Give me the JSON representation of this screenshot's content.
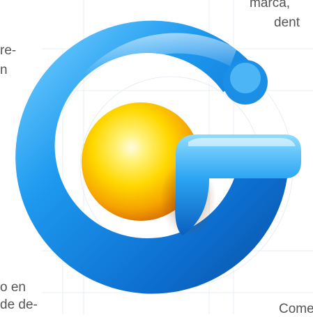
{
  "text_fragments": {
    "top_left_line1": "re-",
    "top_left_line2": "n",
    "top_right_line1": "marca,",
    "top_right_line2": "dent",
    "bottom_left_line1": "o en",
    "bottom_left_line2": "de de-",
    "bottom_right_line1": "Come"
  },
  "logo": {
    "icon": "g-letter-logo-icon",
    "colors": {
      "ring_blue_light": "#5ec8ff",
      "ring_blue": "#1a8fe3",
      "ring_blue_dark": "#0a4f9e",
      "sphere_yellow": "#ffe300",
      "sphere_orange": "#f08a00",
      "sphere_highlight": "#fffbe0"
    }
  }
}
